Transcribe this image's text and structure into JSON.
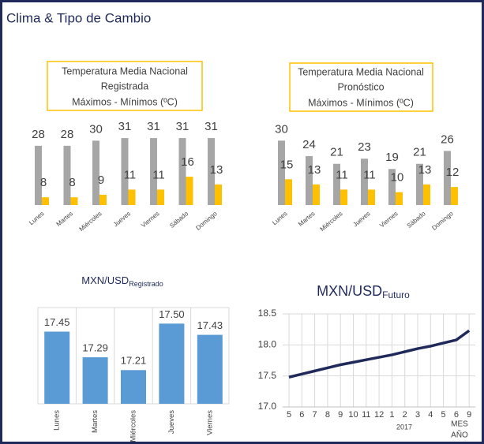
{
  "title": "Clima & Tipo de Cambio",
  "chart_data": [
    {
      "type": "bar",
      "title": [
        "Temperatura Media Nacional",
        "Registrada"
      ],
      "subtitle": "Máximos - Mínimos (ºC)",
      "categories": [
        "Lunes",
        "Martes",
        "Miércoles",
        "Jueves",
        "Viernes",
        "Sábado",
        "Domingo"
      ],
      "series": [
        {
          "color": "#a6a6a6",
          "values": [
            28,
            28,
            30,
            31,
            31,
            31,
            31
          ]
        },
        {
          "color": "#ffc000",
          "values": [
            8,
            8,
            9,
            11,
            11,
            16,
            13
          ]
        }
      ],
      "ylim": [
        5,
        35
      ]
    },
    {
      "type": "bar",
      "title": [
        "Temperatura Media Nacional",
        "Pronóstico"
      ],
      "subtitle": "Máximos - Mínimos (ºC)",
      "categories": [
        "Lunes",
        "Martes",
        "Miércoles",
        "Jueves",
        "Viernes",
        "Sábado",
        "Domingo"
      ],
      "series": [
        {
          "color": "#a6a6a6",
          "values": [
            30,
            24,
            21,
            23,
            19,
            21,
            26
          ]
        },
        {
          "color": "#ffc000",
          "values": [
            15,
            13,
            11,
            11,
            10,
            13,
            12
          ]
        }
      ],
      "ylim": [
        5,
        35
      ]
    },
    {
      "type": "column",
      "title": "MXN/USD",
      "subtitle": "Registrado",
      "categories": [
        "Lunes",
        "Martes",
        "Miércoles",
        "Jueves",
        "Viernes"
      ],
      "values": [
        17.45,
        17.29,
        17.21,
        17.5,
        17.43
      ],
      "value_labels": [
        "17.45",
        "17.29",
        "17.21",
        "17.50",
        "17.43"
      ],
      "color": "#5b9bd5",
      "ylim": [
        17,
        17.6
      ]
    },
    {
      "type": "line",
      "title": "MXN/USD",
      "subtitle": "Futuro",
      "categories": [
        "5",
        "6",
        "7",
        "8",
        "9",
        "10",
        "11",
        "12",
        "1",
        "2",
        "3",
        "4",
        "5",
        "6",
        "9"
      ],
      "values": [
        17.48,
        17.53,
        17.58,
        17.63,
        17.68,
        17.72,
        17.76,
        17.8,
        17.84,
        17.89,
        17.94,
        17.98,
        18.03,
        18.08,
        18.23
      ],
      "year_label": "2017",
      "xlabel": [
        "MES",
        "AÑO"
      ],
      "color": "#1f2a5a",
      "ylim": [
        17,
        18.5
      ],
      "yticks": [
        {
          "value": 17,
          "label": "17.0"
        },
        {
          "value": 17.5,
          "label": "17.5"
        },
        {
          "value": 18,
          "label": "18.0"
        },
        {
          "value": 18.5,
          "label": "18.5"
        }
      ],
      "grid": true
    }
  ]
}
